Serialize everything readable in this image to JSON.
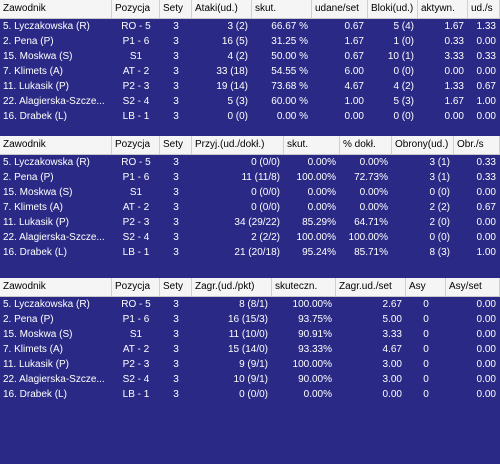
{
  "tables": [
    {
      "headers": [
        "Zawodnik",
        "Pozycja",
        "Sety",
        "Ataki(ud.)",
        "skut.",
        "udane/set",
        "Bloki(ud.)",
        "aktywn.",
        "ud./s"
      ],
      "rows": [
        [
          "5. Lyczakowska (R)",
          "RO - 5",
          "3",
          "3 (2)",
          "66.67 %",
          "0.67",
          "5 (4)",
          "1.67",
          "1.33"
        ],
        [
          "2. Pena (P)",
          "P1 - 6",
          "3",
          "16 (5)",
          "31.25 %",
          "1.67",
          "1 (0)",
          "0.33",
          "0.00"
        ],
        [
          "15. Moskwa (S)",
          "S1",
          "3",
          "4 (2)",
          "50.00 %",
          "0.67",
          "10 (1)",
          "3.33",
          "0.33"
        ],
        [
          "7. Klimets (A)",
          "AT - 2",
          "3",
          "33 (18)",
          "54.55 %",
          "6.00",
          "0 (0)",
          "0.00",
          "0.00"
        ],
        [
          "11. Lukasik (P)",
          "P2 - 3",
          "3",
          "19 (14)",
          "73.68 %",
          "4.67",
          "4 (2)",
          "1.33",
          "0.67"
        ],
        [
          "22. Alagierska-Szcze...",
          "S2 - 4",
          "3",
          "5 (3)",
          "60.00 %",
          "1.00",
          "5 (3)",
          "1.67",
          "1.00"
        ],
        [
          "16. Drabek (L)",
          "LB - 1",
          "3",
          "0 (0)",
          "0.00 %",
          "0.00",
          "0 (0)",
          "0.00",
          "0.00"
        ]
      ]
    },
    {
      "headers": [
        "Zawodnik",
        "Pozycja",
        "Sety",
        "Przyj.(ud./dokł.)",
        "skut.",
        "% dokł.",
        "Obrony(ud.)",
        "Obr./s"
      ],
      "rows": [
        [
          "5. Lyczakowska (R)",
          "RO - 5",
          "3",
          "0 (0/0)",
          "0.00%",
          "0.00%",
          "3 (1)",
          "0.33"
        ],
        [
          "2. Pena (P)",
          "P1 - 6",
          "3",
          "11 (11/8)",
          "100.00%",
          "72.73%",
          "3 (1)",
          "0.33"
        ],
        [
          "15. Moskwa (S)",
          "S1",
          "3",
          "0 (0/0)",
          "0.00%",
          "0.00%",
          "0 (0)",
          "0.00"
        ],
        [
          "7. Klimets (A)",
          "AT - 2",
          "3",
          "0 (0/0)",
          "0.00%",
          "0.00%",
          "2 (2)",
          "0.67"
        ],
        [
          "11. Lukasik (P)",
          "P2 - 3",
          "3",
          "34 (29/22)",
          "85.29%",
          "64.71%",
          "2 (0)",
          "0.00"
        ],
        [
          "22. Alagierska-Szcze...",
          "S2 - 4",
          "3",
          "2 (2/2)",
          "100.00%",
          "100.00%",
          "0 (0)",
          "0.00"
        ],
        [
          "16. Drabek (L)",
          "LB - 1",
          "3",
          "21 (20/18)",
          "95.24%",
          "85.71%",
          "8 (3)",
          "1.00"
        ]
      ]
    },
    {
      "headers": [
        "Zawodnik",
        "Pozycja",
        "Sety",
        "Zagr.(ud./pkt)",
        "skuteczn.",
        "Zagr.ud./set",
        "Asy",
        "Asy/set"
      ],
      "rows": [
        [
          "5. Lyczakowska (R)",
          "RO - 5",
          "3",
          "8 (8/1)",
          "100.00%",
          "2.67",
          "0",
          "0.00"
        ],
        [
          "2. Pena (P)",
          "P1 - 6",
          "3",
          "16 (15/3)",
          "93.75%",
          "5.00",
          "0",
          "0.00"
        ],
        [
          "15. Moskwa (S)",
          "S1",
          "3",
          "11 (10/0)",
          "90.91%",
          "3.33",
          "0",
          "0.00"
        ],
        [
          "7. Klimets (A)",
          "AT - 2",
          "3",
          "15 (14/0)",
          "93.33%",
          "4.67",
          "0",
          "0.00"
        ],
        [
          "11. Lukasik (P)",
          "P2 - 3",
          "3",
          "9 (9/1)",
          "100.00%",
          "3.00",
          "0",
          "0.00"
        ],
        [
          "22. Alagierska-Szcze...",
          "S2 - 4",
          "3",
          "10 (9/1)",
          "90.00%",
          "3.00",
          "0",
          "0.00"
        ],
        [
          "16. Drabek (L)",
          "LB - 1",
          "3",
          "0 (0/0)",
          "0.00%",
          "0.00",
          "0",
          "0.00"
        ]
      ]
    }
  ]
}
